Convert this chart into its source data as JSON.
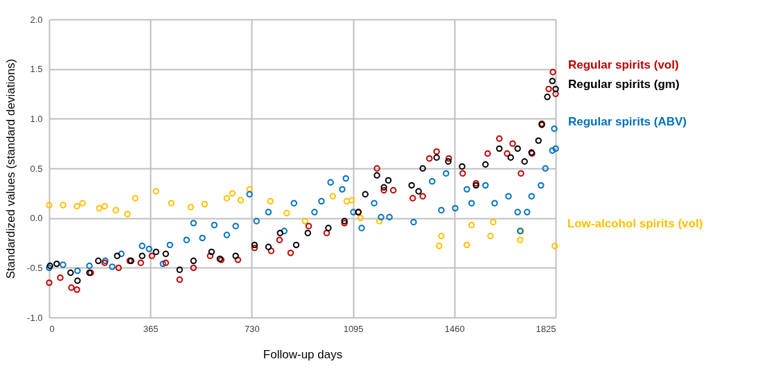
{
  "chart_data": {
    "type": "scatter",
    "xlabel": "Follow-up days",
    "ylabel": "Standardized values (standard deviations)",
    "xlim": [
      0,
      1825
    ],
    "xticks": [
      0,
      365,
      730,
      1095,
      1460,
      1825
    ],
    "ylim": [
      -1.0,
      2.0
    ],
    "yticks": [
      {
        "value": -1,
        "label": "-1.0"
      },
      {
        "value": -0.5,
        "label": "-0.5"
      },
      {
        "value": 0,
        "label": "0.0"
      },
      {
        "value": 0.5,
        "label": "0.5"
      },
      {
        "value": 1,
        "label": "1.0"
      },
      {
        "value": 1.5,
        "label": "1.5"
      },
      {
        "value": 2,
        "label": "2.0"
      }
    ],
    "grid": true,
    "marker": "circle",
    "legend": "right",
    "series": [
      {
        "name": "Low-alcohol spirits (vol)",
        "color": "#ffc000",
        "x": [
          0,
          50,
          100,
          120,
          180,
          200,
          240,
          282,
          310,
          385,
          440,
          510,
          560,
          640,
          660,
          690,
          722,
          797,
          856,
          922,
          1022,
          1072,
          1090,
          1122,
          1190,
          1405,
          1413,
          1505,
          1522,
          1590,
          1600,
          1697,
          1700,
          1822
        ],
        "values": [
          0.13,
          0.13,
          0.12,
          0.15,
          0.1,
          0.12,
          0.08,
          0.04,
          0.2,
          0.27,
          0.15,
          0.11,
          0.14,
          0.2,
          0.25,
          0.18,
          0.29,
          0.17,
          0.05,
          -0.03,
          0.22,
          0.17,
          0.18,
          0.0,
          -0.03,
          -0.28,
          -0.18,
          -0.27,
          -0.07,
          -0.18,
          -0.04,
          -0.22,
          -0.13,
          -0.28
        ]
      },
      {
        "name": "Regular spirits (ABV)",
        "color": "#0070c0",
        "x": [
          0,
          50,
          102,
          145,
          202,
          227,
          260,
          335,
          360,
          410,
          435,
          495,
          520,
          552,
          595,
          640,
          672,
          722,
          747,
          790,
          847,
          882,
          956,
          981,
          1014,
          1056,
          1069,
          1096,
          1126,
          1171,
          1196,
          1226,
          1313,
          1380,
          1413,
          1430,
          1463,
          1505,
          1522,
          1572,
          1605,
          1655,
          1688,
          1697,
          1722,
          1738,
          1772,
          1788,
          1813,
          1820,
          1825
        ],
        "values": [
          -0.5,
          -0.47,
          -0.53,
          -0.48,
          -0.43,
          -0.49,
          -0.36,
          -0.28,
          -0.31,
          -0.46,
          -0.27,
          -0.22,
          -0.05,
          -0.2,
          -0.07,
          -0.17,
          -0.08,
          0.24,
          -0.03,
          0.06,
          -0.13,
          0.15,
          0.06,
          0.17,
          0.36,
          0.29,
          0.4,
          0.06,
          -0.1,
          0.15,
          0.01,
          0.01,
          -0.04,
          0.37,
          0.08,
          0.45,
          0.1,
          0.29,
          0.15,
          0.33,
          0.15,
          0.22,
          0.06,
          -0.13,
          0.06,
          0.22,
          0.33,
          0.5,
          0.68,
          0.9,
          0.7
        ]
      },
      {
        "name": "Regular spirits (vol)",
        "color": "#c00000",
        "x": [
          0,
          40,
          80,
          100,
          150,
          200,
          250,
          290,
          330,
          370,
          420,
          470,
          520,
          580,
          620,
          680,
          740,
          800,
          830,
          870,
          935,
          1000,
          1064,
          1114,
          1181,
          1206,
          1240,
          1310,
          1346,
          1370,
          1396,
          1440,
          1490,
          1538,
          1580,
          1622,
          1650,
          1670,
          1700,
          1740,
          1775,
          1800,
          1815,
          1825
        ],
        "values": [
          -0.65,
          -0.6,
          -0.7,
          -0.72,
          -0.55,
          -0.45,
          -0.5,
          -0.43,
          -0.45,
          -0.38,
          -0.45,
          -0.62,
          -0.5,
          -0.38,
          -0.42,
          -0.42,
          -0.3,
          -0.33,
          -0.22,
          -0.35,
          -0.08,
          -0.15,
          -0.05,
          0.06,
          0.5,
          0.28,
          0.28,
          0.2,
          0.22,
          0.6,
          0.67,
          0.6,
          0.45,
          0.35,
          0.65,
          0.8,
          0.65,
          0.75,
          0.45,
          0.65,
          0.95,
          1.3,
          1.47,
          1.25
        ]
      },
      {
        "name": "Regular spirits (gm)",
        "color": "#000000",
        "x": [
          3,
          27,
          77,
          102,
          145,
          177,
          245,
          295,
          335,
          385,
          420,
          470,
          520,
          585,
          615,
          672,
          740,
          790,
          832,
          890,
          932,
          1006,
          1064,
          1114,
          1139,
          1181,
          1206,
          1222,
          1306,
          1331,
          1346,
          1396,
          1438,
          1488,
          1538,
          1572,
          1622,
          1663,
          1688,
          1713,
          1738,
          1763,
          1775,
          1795,
          1813,
          1825
        ],
        "values": [
          -0.48,
          -0.46,
          -0.55,
          -0.63,
          -0.55,
          -0.43,
          -0.38,
          -0.43,
          -0.38,
          -0.34,
          -0.36,
          -0.52,
          -0.43,
          -0.34,
          -0.41,
          -0.38,
          -0.27,
          -0.29,
          -0.15,
          -0.27,
          -0.15,
          -0.1,
          -0.03,
          0.06,
          0.24,
          0.43,
          0.31,
          0.38,
          0.33,
          0.27,
          0.5,
          0.61,
          0.57,
          0.52,
          0.33,
          0.54,
          0.7,
          0.61,
          0.7,
          0.57,
          0.66,
          0.78,
          0.94,
          1.22,
          1.38,
          1.3
        ]
      }
    ]
  }
}
